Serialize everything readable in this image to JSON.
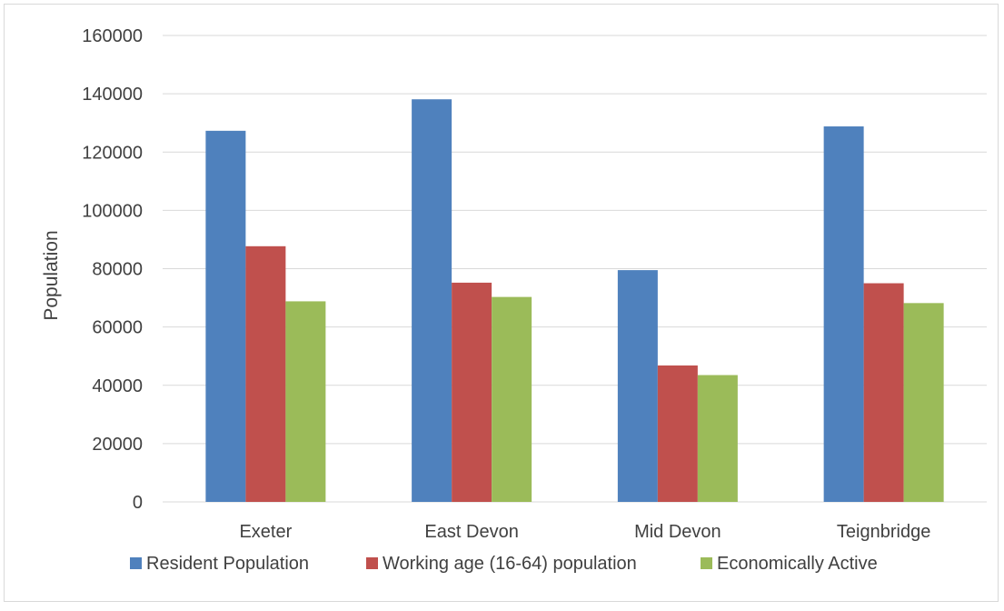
{
  "chart_data": {
    "type": "bar",
    "title": "",
    "xlabel": "",
    "ylabel": "Population",
    "ylim": [
      0,
      160000
    ],
    "yticks": [
      0,
      20000,
      40000,
      60000,
      80000,
      100000,
      120000,
      140000,
      160000
    ],
    "grid": true,
    "legend": "bottom",
    "categories": [
      "Exeter",
      "East Devon",
      "Mid Devon",
      "Teignbridge"
    ],
    "series": [
      {
        "name": "Resident Population",
        "color": "#4f81bd",
        "values": [
          127300,
          138100,
          79500,
          128800
        ]
      },
      {
        "name": "Working age (16-64) population",
        "color": "#c0504d",
        "values": [
          87700,
          75200,
          46800,
          75000
        ]
      },
      {
        "name": "Economically Active",
        "color": "#9bbb59",
        "values": [
          68800,
          70300,
          43500,
          68200
        ]
      }
    ]
  }
}
